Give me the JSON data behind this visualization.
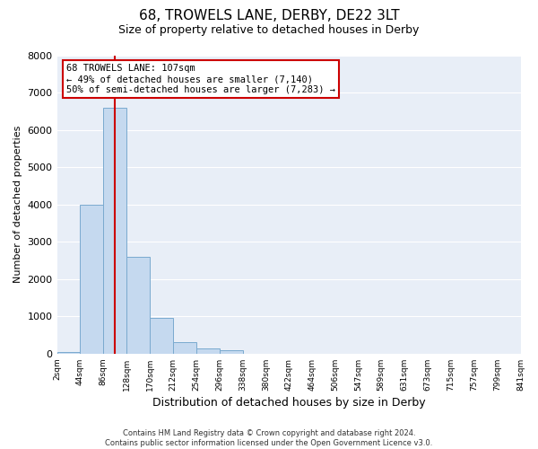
{
  "title": "68, TROWELS LANE, DERBY, DE22 3LT",
  "subtitle": "Size of property relative to detached houses in Derby",
  "xlabel": "Distribution of detached houses by size in Derby",
  "ylabel": "Number of detached properties",
  "bar_color": "#c5d9ef",
  "bar_edge_color": "#7aaacf",
  "bg_color": "#e8eef7",
  "grid_color": "#ffffff",
  "bin_edges": [
    2,
    44,
    86,
    128,
    170,
    212,
    254,
    296,
    338,
    380,
    422,
    464,
    506,
    547,
    589,
    631,
    673,
    715,
    757,
    799,
    841
  ],
  "bin_labels": [
    "2sqm",
    "44sqm",
    "86sqm",
    "128sqm",
    "170sqm",
    "212sqm",
    "254sqm",
    "296sqm",
    "338sqm",
    "380sqm",
    "422sqm",
    "464sqm",
    "506sqm",
    "547sqm",
    "589sqm",
    "631sqm",
    "673sqm",
    "715sqm",
    "757sqm",
    "799sqm",
    "841sqm"
  ],
  "counts": [
    50,
    4000,
    6600,
    2600,
    950,
    320,
    130,
    80,
    0,
    0,
    0,
    0,
    0,
    0,
    0,
    0,
    0,
    0,
    0,
    0
  ],
  "vline_x": 107,
  "vline_color": "#cc0000",
  "annotation_title": "68 TROWELS LANE: 107sqm",
  "annotation_line1": "← 49% of detached houses are smaller (7,140)",
  "annotation_line2": "50% of semi-detached houses are larger (7,283) →",
  "annotation_box_color": "#ffffff",
  "annotation_box_edge": "#cc0000",
  "ylim": [
    0,
    8000
  ],
  "yticks": [
    0,
    1000,
    2000,
    3000,
    4000,
    5000,
    6000,
    7000,
    8000
  ],
  "footer_line1": "Contains HM Land Registry data © Crown copyright and database right 2024.",
  "footer_line2": "Contains public sector information licensed under the Open Government Licence v3.0."
}
